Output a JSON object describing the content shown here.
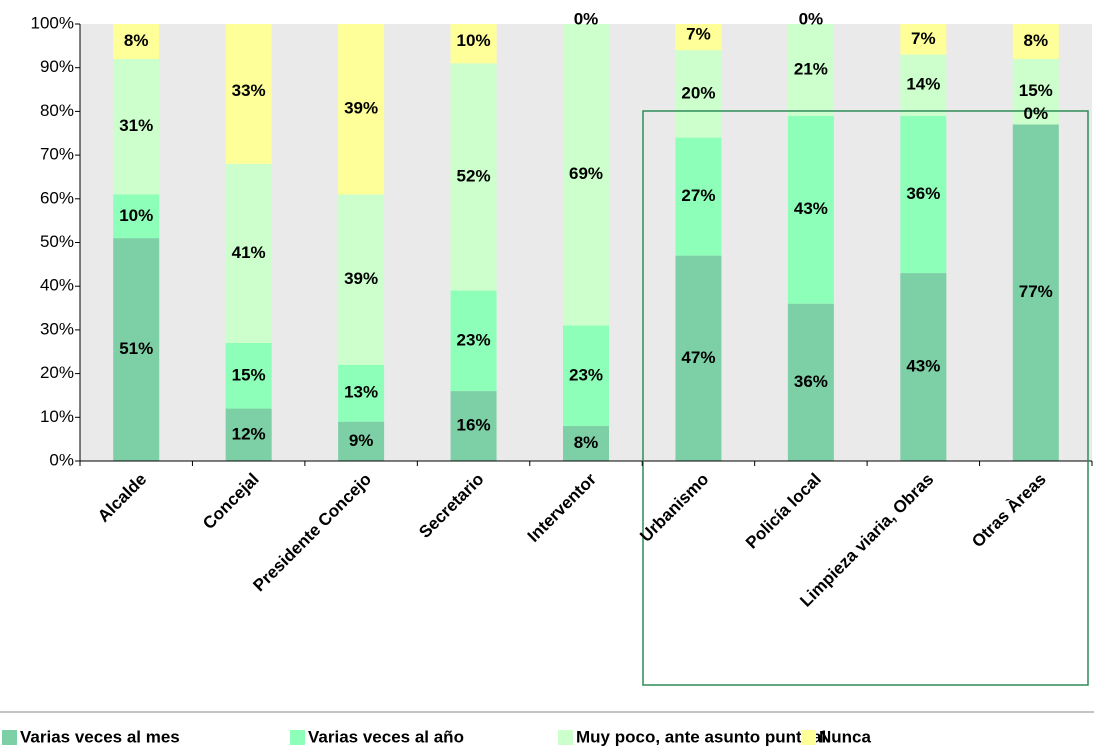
{
  "chart_data": {
    "type": "stacked_bar",
    "categories": [
      "Alcalde",
      "Concejal",
      "Presidente Concejo",
      "Secretario",
      "Interventor",
      "Urbanismo",
      "Policía local",
      "Limpieza viaria, Obras",
      "Otras Àreas"
    ],
    "series": [
      {
        "name": "Varias veces al mes",
        "color": "#7dcfa6",
        "values": [
          51,
          12,
          9,
          16,
          8,
          47,
          36,
          43,
          77
        ],
        "value_labels": [
          "51%",
          "12%",
          "9%",
          "16%",
          "8%",
          "47%",
          "36%",
          "43%",
          "77%"
        ]
      },
      {
        "name": "Varias veces al año",
        "color": "#8effb8",
        "values": [
          10,
          15,
          13,
          23,
          23,
          27,
          43,
          36,
          0
        ],
        "value_labels": [
          "10%",
          "15%",
          "13%",
          "23%",
          "23%",
          "27%",
          "43%",
          "36%",
          "0%"
        ]
      },
      {
        "name": "Muy poco, ante asunto puntual",
        "color": "#ccffcc",
        "values": [
          31,
          41,
          39,
          52,
          69,
          20,
          21,
          14,
          15
        ],
        "value_labels": [
          "31%",
          "41%",
          "39%",
          "52%",
          "69%",
          "20%",
          "21%",
          "14%",
          "15%"
        ]
      },
      {
        "name": "Nunca",
        "color": "#ffff99",
        "values": [
          8,
          33,
          39,
          10,
          0,
          7,
          0,
          7,
          8
        ],
        "value_labels": [
          "8%",
          "33%",
          "39%",
          "10%",
          "0%",
          "7%",
          "0%",
          "7%",
          "8%"
        ]
      }
    ],
    "ylim": [
      0,
      100
    ],
    "yticks": [
      {
        "value": 0,
        "label": "0%"
      },
      {
        "value": 10,
        "label": "10%"
      },
      {
        "value": 20,
        "label": "20%"
      },
      {
        "value": 30,
        "label": "30%"
      },
      {
        "value": 40,
        "label": "40%"
      },
      {
        "value": 50,
        "label": "50%"
      },
      {
        "value": 60,
        "label": "60%"
      },
      {
        "value": 70,
        "label": "70%"
      },
      {
        "value": 80,
        "label": "80%"
      },
      {
        "value": 90,
        "label": "90%"
      },
      {
        "value": 100,
        "label": "100%"
      }
    ],
    "legend": "bottom"
  }
}
